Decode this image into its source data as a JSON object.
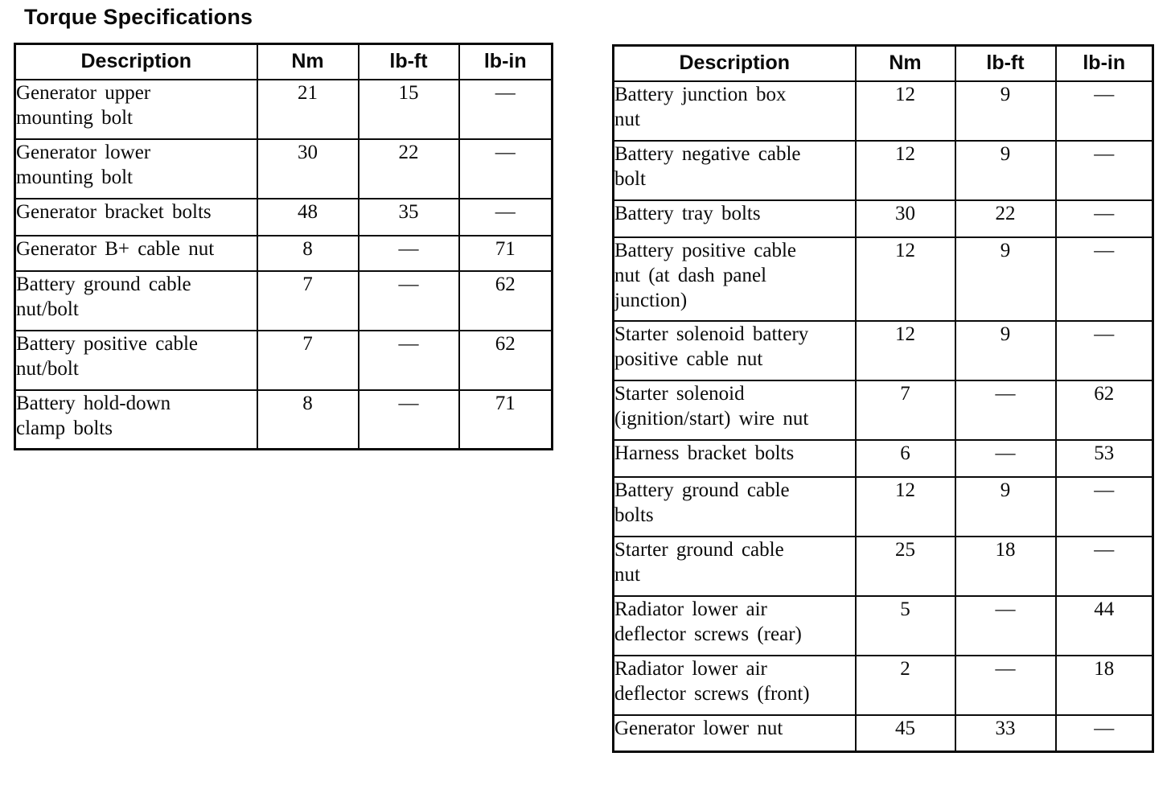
{
  "page": {
    "title": "Torque Specifications",
    "ink_color": "#0a0a0a",
    "background_color": "#ffffff"
  },
  "tables": [
    {
      "name": "generator-battery-torque-table",
      "headers": [
        "Description",
        "Nm",
        "lb-ft",
        "lb-in"
      ],
      "rows": [
        {
          "description": "Generator upper\nmounting bolt",
          "nm": "21",
          "lb_ft": "15",
          "lb_in": "—"
        },
        {
          "description": "Generator lower\nmounting bolt",
          "nm": "30",
          "lb_ft": "22",
          "lb_in": "—"
        },
        {
          "description": "Generator bracket bolts",
          "nm": "48",
          "lb_ft": "35",
          "lb_in": "—"
        },
        {
          "description": "Generator B+ cable nut",
          "nm": "8",
          "lb_ft": "—",
          "lb_in": "71"
        },
        {
          "description": "Battery ground cable\nnut/bolt",
          "nm": "7",
          "lb_ft": "—",
          "lb_in": "62"
        },
        {
          "description": "Battery positive cable\nnut/bolt",
          "nm": "7",
          "lb_ft": "—",
          "lb_in": "62"
        },
        {
          "description": "Battery hold-down\nclamp bolts",
          "nm": "8",
          "lb_ft": "—",
          "lb_in": "71"
        }
      ]
    },
    {
      "name": "battery-starter-radiator-torque-table",
      "headers": [
        "Description",
        "Nm",
        "lb-ft",
        "lb-in"
      ],
      "rows": [
        {
          "description": "Battery junction box\nnut",
          "nm": "12",
          "lb_ft": "9",
          "lb_in": "—"
        },
        {
          "description": "Battery negative cable\nbolt",
          "nm": "12",
          "lb_ft": "9",
          "lb_in": "—"
        },
        {
          "description": "Battery tray bolts",
          "nm": "30",
          "lb_ft": "22",
          "lb_in": "—"
        },
        {
          "description": "Battery positive cable\nnut (at dash panel\njunction)",
          "nm": "12",
          "lb_ft": "9",
          "lb_in": "—"
        },
        {
          "description": "Starter solenoid battery\npositive cable nut",
          "nm": "12",
          "lb_ft": "9",
          "lb_in": "—"
        },
        {
          "description": "Starter solenoid\n(ignition/start) wire nut",
          "nm": "7",
          "lb_ft": "—",
          "lb_in": "62"
        },
        {
          "description": "Harness bracket bolts",
          "nm": "6",
          "lb_ft": "—",
          "lb_in": "53"
        },
        {
          "description": "Battery ground cable\nbolts",
          "nm": "12",
          "lb_ft": "9",
          "lb_in": "—"
        },
        {
          "description": "Starter ground cable\nnut",
          "nm": "25",
          "lb_ft": "18",
          "lb_in": "—"
        },
        {
          "description": "Radiator lower air\ndeflector screws (rear)",
          "nm": "5",
          "lb_ft": "—",
          "lb_in": "44"
        },
        {
          "description": "Radiator lower air\ndeflector screws (front)",
          "nm": "2",
          "lb_ft": "—",
          "lb_in": "18"
        },
        {
          "description": "Generator lower nut",
          "nm": "45",
          "lb_ft": "33",
          "lb_in": "—"
        }
      ]
    }
  ]
}
